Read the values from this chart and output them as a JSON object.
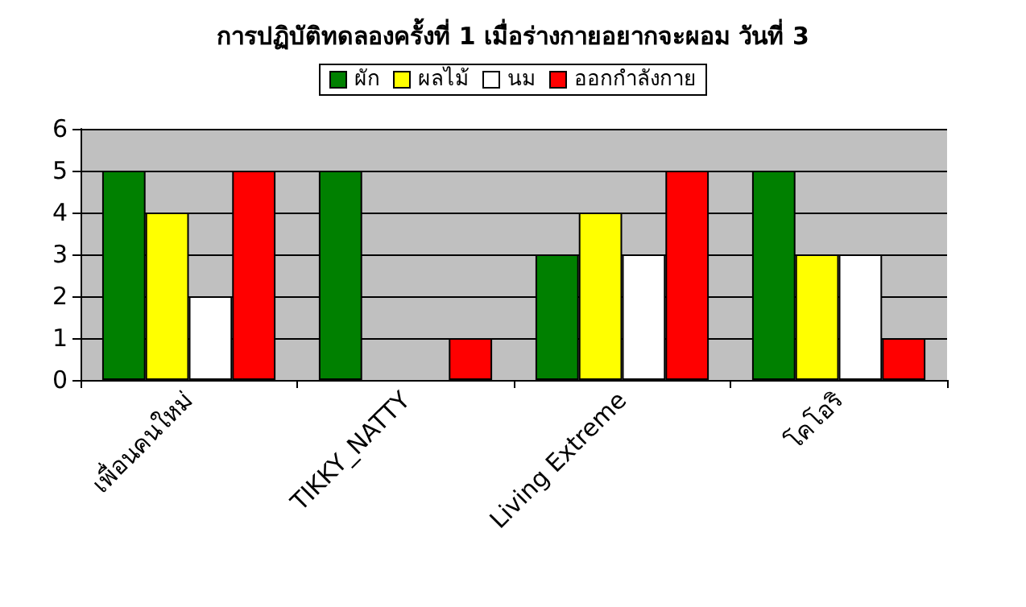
{
  "chart_data": {
    "type": "bar",
    "title": "การปฏิบัติทดลองครั้งที่ 1 เมื่อร่างกายอยากจะผอม วันที่ 3",
    "categories": [
      "เพื่อนคนใหม่",
      "TIKKY_NATTY",
      "Living Extreme",
      "โคโอริ"
    ],
    "series": [
      {
        "name": "ผัก",
        "color": "#008000",
        "values": [
          5,
          5,
          3,
          5
        ]
      },
      {
        "name": "ผลไม้",
        "color": "#ffff00",
        "values": [
          4,
          null,
          4,
          3
        ]
      },
      {
        "name": "นม",
        "color": "#ffffff",
        "values": [
          2,
          null,
          3,
          3
        ]
      },
      {
        "name": "ออกกำลังกาย",
        "color": "#ff0000",
        "values": [
          5,
          1,
          5,
          1
        ]
      }
    ],
    "ylim": [
      0,
      6
    ],
    "yticks": [
      0,
      1,
      2,
      3,
      4,
      5,
      6
    ],
    "grid": "y",
    "legend": "top"
  }
}
